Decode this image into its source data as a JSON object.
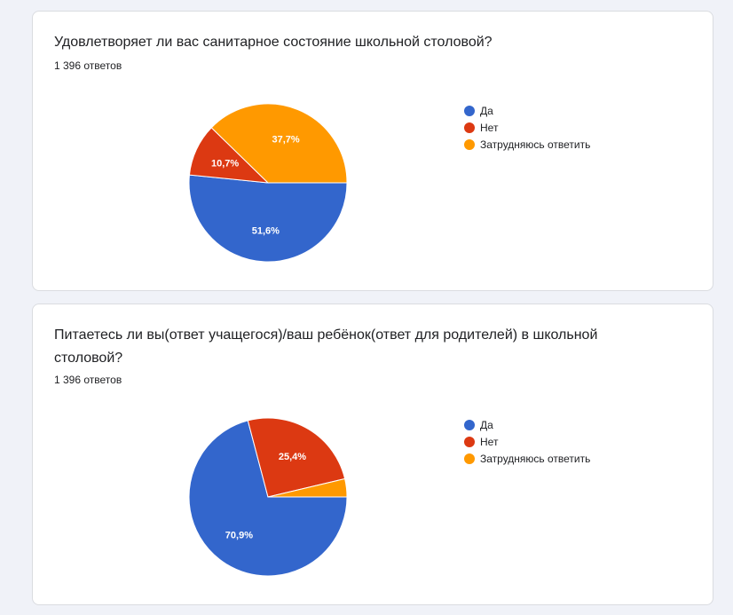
{
  "colors": {
    "da": "#3366cc",
    "net": "#dc3912",
    "zatr": "#ff9900"
  },
  "chart_data": [
    {
      "type": "pie",
      "title": "Удовлетворяет ли вас санитарное состояние школьной столовой?",
      "subtitle": "1 396 ответов",
      "categories": [
        "Да",
        "Нет",
        "Затрудняюсь ответить"
      ],
      "values": [
        51.6,
        10.7,
        37.7
      ],
      "labels": [
        "51,6%",
        "10,7%",
        "37,7%"
      ],
      "legend": "right"
    },
    {
      "type": "pie",
      "title": "Питаетесь ли вы(ответ учащегося)/ваш ребёнок(ответ для родителей) в школьной столовой?",
      "subtitle": "1 396 ответов",
      "categories": [
        "Да",
        "Нет",
        "Затрудняюсь ответить"
      ],
      "values": [
        70.9,
        25.4,
        3.7
      ],
      "labels": [
        "70,9%",
        "25,4%",
        ""
      ],
      "legend": "right"
    }
  ]
}
